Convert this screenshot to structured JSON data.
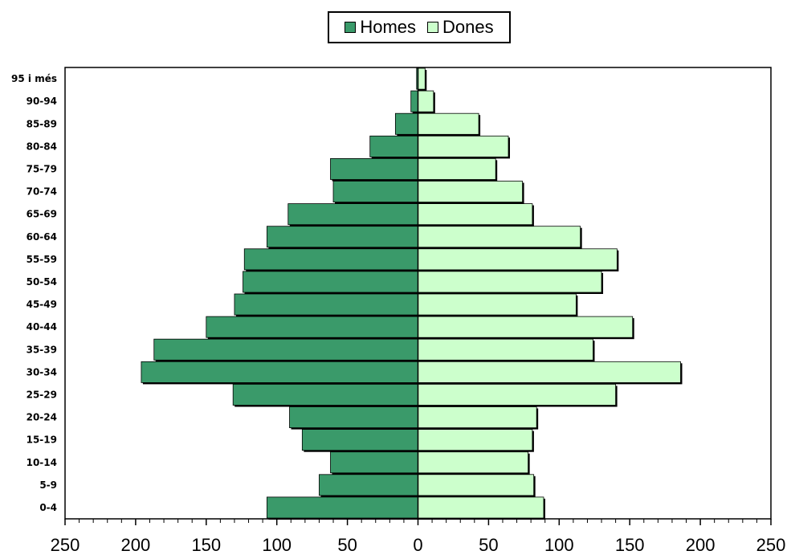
{
  "chart_data": {
    "type": "bar",
    "orientation": "horizontal",
    "layout": "population-pyramid",
    "categories": [
      "0-4",
      "5-9",
      "10-14",
      "15-19",
      "20-24",
      "25-29",
      "30-34",
      "35-39",
      "40-44",
      "45-49",
      "50-54",
      "55-59",
      "60-64",
      "65-69",
      "70-74",
      "75-79",
      "80-84",
      "85-89",
      "90-94",
      "95 i més"
    ],
    "series": [
      {
        "name": "Homes",
        "color": "#3a9a6a",
        "side": "left",
        "values": [
          107,
          70,
          62,
          82,
          91,
          131,
          196,
          187,
          150,
          130,
          124,
          123,
          107,
          92,
          60,
          62,
          34,
          16,
          5,
          1
        ]
      },
      {
        "name": "Dones",
        "color": "#ccffcc",
        "side": "right",
        "values": [
          89,
          82,
          78,
          81,
          84,
          140,
          186,
          124,
          152,
          112,
          130,
          141,
          115,
          81,
          74,
          55,
          64,
          43,
          11,
          5
        ]
      }
    ],
    "xlim": [
      -250,
      250
    ],
    "x_ticks": [
      -250,
      -200,
      -150,
      -100,
      -50,
      0,
      50,
      100,
      150,
      200,
      250
    ],
    "x_tick_labels": [
      "250",
      "200",
      "150",
      "100",
      "50",
      "0",
      "50",
      "100",
      "150",
      "200",
      "250"
    ],
    "legend_position": "top-center",
    "title": "",
    "xlabel": "",
    "ylabel": ""
  }
}
